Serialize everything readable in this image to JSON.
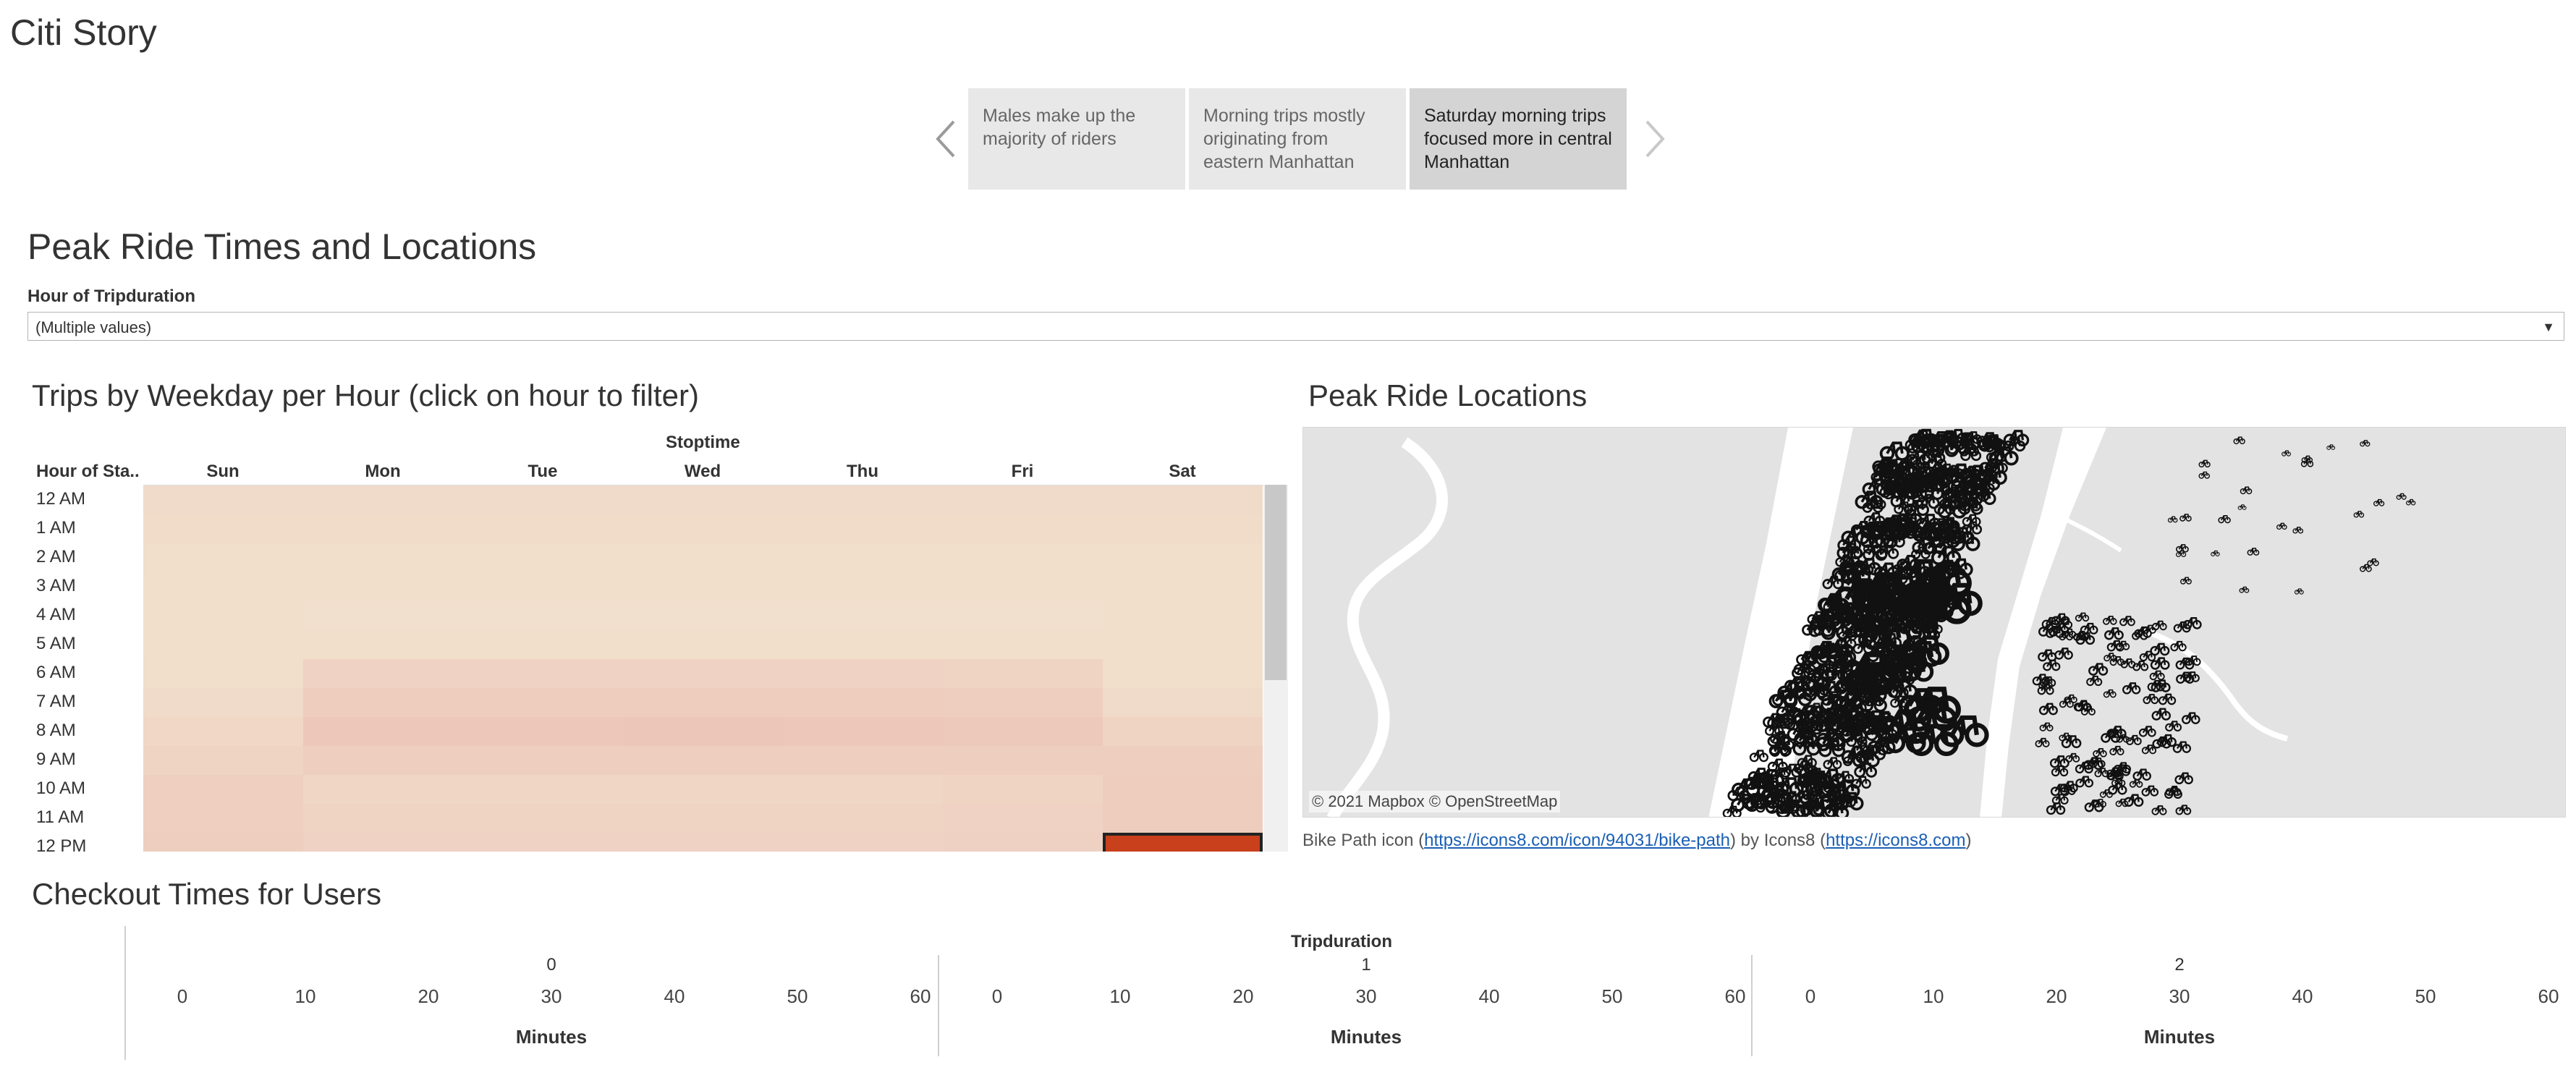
{
  "app": {
    "title": "Citi Story"
  },
  "story": {
    "points": [
      {
        "label": "Males make up the majority of riders",
        "active": false
      },
      {
        "label": "Morning trips mostly originating from eastern Manhattan",
        "active": false
      },
      {
        "label": "Saturday morning trips focused more in central Manhattan",
        "active": true
      }
    ],
    "prev_icon": "chevron-left-icon",
    "next_icon": "chevron-right-icon"
  },
  "dashboard": {
    "title": "Peak Ride Times and Locations",
    "filter": {
      "label": "Hour of Tripduration",
      "value": "(Multiple values)"
    }
  },
  "heatmap": {
    "title": "Trips by Weekday per Hour (click on hour to filter)",
    "column_header": "Stoptime",
    "row_header": "Hour of Sta..",
    "days": [
      "Sun",
      "Mon",
      "Tue",
      "Wed",
      "Thu",
      "Fri",
      "Sat"
    ],
    "hours": [
      "12 AM",
      "1 AM",
      "2 AM",
      "3 AM",
      "4 AM",
      "5 AM",
      "6 AM",
      "7 AM",
      "8 AM",
      "9 AM",
      "10 AM",
      "11 AM",
      "12 PM"
    ],
    "values": [
      [
        0.12,
        0.12,
        0.12,
        0.12,
        0.12,
        0.12,
        0.12
      ],
      [
        0.1,
        0.1,
        0.1,
        0.1,
        0.1,
        0.1,
        0.1
      ],
      [
        0.08,
        0.08,
        0.08,
        0.08,
        0.08,
        0.08,
        0.08
      ],
      [
        0.06,
        0.06,
        0.06,
        0.06,
        0.06,
        0.06,
        0.06
      ],
      [
        0.06,
        0.05,
        0.05,
        0.05,
        0.05,
        0.05,
        0.06
      ],
      [
        0.06,
        0.08,
        0.08,
        0.08,
        0.08,
        0.08,
        0.06
      ],
      [
        0.08,
        0.22,
        0.22,
        0.22,
        0.22,
        0.2,
        0.08
      ],
      [
        0.12,
        0.3,
        0.3,
        0.3,
        0.3,
        0.28,
        0.12
      ],
      [
        0.16,
        0.36,
        0.36,
        0.38,
        0.36,
        0.34,
        0.2
      ],
      [
        0.2,
        0.28,
        0.28,
        0.28,
        0.28,
        0.28,
        0.28
      ],
      [
        0.26,
        0.18,
        0.18,
        0.18,
        0.18,
        0.2,
        0.3
      ],
      [
        0.26,
        0.2,
        0.2,
        0.2,
        0.2,
        0.22,
        0.3
      ],
      [
        0.28,
        0.22,
        0.22,
        0.22,
        0.22,
        0.24,
        1.0
      ]
    ],
    "selected": {
      "hour": "12 PM",
      "day": "Sat"
    },
    "colors": {
      "low": "#f2e4d0",
      "mid": "#ecc4b8",
      "high": "#c8401c"
    }
  },
  "map": {
    "title": "Peak Ride Locations",
    "attribution": "© 2021 Mapbox  © OpenStreetMap",
    "marker_icon": "bike-icon",
    "credit": {
      "prefix": "Bike Path icon (",
      "link1": "https://icons8.com/icon/94031/bike-path",
      "middle": ") by Icons8 (",
      "link2": "https://icons8.com",
      "suffix": ")"
    }
  },
  "checkout": {
    "title": "Checkout Times for Users",
    "top_label": "Tripduration",
    "panels": [
      {
        "header": "0",
        "ticks": [
          "0",
          "10",
          "20",
          "30",
          "40",
          "50",
          "60"
        ],
        "axis_title": "Minutes"
      },
      {
        "header": "1",
        "ticks": [
          "0",
          "10",
          "20",
          "30",
          "40",
          "50",
          "60"
        ],
        "axis_title": "Minutes"
      },
      {
        "header": "2",
        "ticks": [
          "0",
          "10",
          "20",
          "30",
          "40",
          "50",
          "60"
        ],
        "axis_title": "Minutes"
      }
    ]
  }
}
